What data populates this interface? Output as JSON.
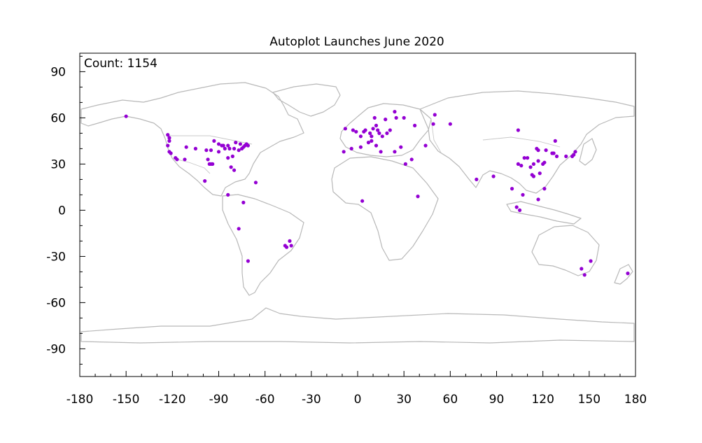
{
  "chart_data": {
    "type": "scatter",
    "title": "Autoplot Launches June 2020",
    "annotation": "Count: 1154",
    "xlabel": "",
    "ylabel": "",
    "xlim": [
      -180,
      180
    ],
    "ylim": [
      -108,
      102
    ],
    "x_ticks": [
      -180,
      -150,
      -120,
      -90,
      -60,
      -30,
      0,
      30,
      60,
      90,
      120,
      150,
      180
    ],
    "x_tick_labels": [
      "-180",
      "-150",
      "-120",
      "-90",
      "-60",
      "-30",
      "0",
      "30",
      "60",
      "90",
      "120",
      "150",
      "180"
    ],
    "y_ticks": [
      90,
      60,
      30,
      0,
      -30,
      -60,
      -90
    ],
    "y_tick_labels": [
      "90",
      "60",
      "30",
      "0",
      "-30",
      "-60",
      "-90"
    ],
    "marker_color": "#9400d3",
    "map_color": "#b8b8b8",
    "points": [
      {
        "x": -150,
        "y": 61
      },
      {
        "x": -123,
        "y": 49
      },
      {
        "x": -122,
        "y": 47
      },
      {
        "x": -122,
        "y": 45
      },
      {
        "x": -123,
        "y": 42
      },
      {
        "x": -122,
        "y": 38
      },
      {
        "x": -121,
        "y": 37
      },
      {
        "x": -118,
        "y": 34
      },
      {
        "x": -117,
        "y": 33
      },
      {
        "x": -112,
        "y": 33
      },
      {
        "x": -111,
        "y": 41
      },
      {
        "x": -105,
        "y": 40
      },
      {
        "x": -97,
        "y": 33
      },
      {
        "x": -96,
        "y": 30
      },
      {
        "x": -95,
        "y": 30
      },
      {
        "x": -94,
        "y": 30
      },
      {
        "x": -93,
        "y": 45
      },
      {
        "x": -90,
        "y": 43
      },
      {
        "x": -88,
        "y": 42
      },
      {
        "x": -87,
        "y": 42
      },
      {
        "x": -86,
        "y": 40
      },
      {
        "x": -84,
        "y": 42
      },
      {
        "x": -83,
        "y": 40
      },
      {
        "x": -84,
        "y": 34
      },
      {
        "x": -81,
        "y": 35
      },
      {
        "x": -80,
        "y": 40
      },
      {
        "x": -79,
        "y": 44
      },
      {
        "x": -77,
        "y": 39
      },
      {
        "x": -75,
        "y": 40
      },
      {
        "x": -74,
        "y": 41
      },
      {
        "x": -73,
        "y": 42
      },
      {
        "x": -71,
        "y": 42
      },
      {
        "x": -72,
        "y": 43
      },
      {
        "x": -76,
        "y": 43
      },
      {
        "x": -90,
        "y": 38
      },
      {
        "x": -95,
        "y": 39
      },
      {
        "x": -98,
        "y": 39
      },
      {
        "x": -80,
        "y": 26
      },
      {
        "x": -82,
        "y": 28
      },
      {
        "x": -66,
        "y": 18
      },
      {
        "x": -99,
        "y": 19
      },
      {
        "x": -84,
        "y": 10
      },
      {
        "x": -74,
        "y": 5
      },
      {
        "x": -77,
        "y": -12
      },
      {
        "x": -71,
        "y": -33
      },
      {
        "x": -47,
        "y": -23
      },
      {
        "x": -43,
        "y": -23
      },
      {
        "x": -46,
        "y": -24
      },
      {
        "x": -44,
        "y": -20
      },
      {
        "x": -8,
        "y": 53
      },
      {
        "x": -3,
        "y": 52
      },
      {
        "x": -1,
        "y": 51
      },
      {
        "x": 2,
        "y": 48
      },
      {
        "x": 4,
        "y": 51
      },
      {
        "x": 5,
        "y": 52
      },
      {
        "x": 8,
        "y": 50
      },
      {
        "x": 9,
        "y": 48
      },
      {
        "x": 10,
        "y": 53
      },
      {
        "x": 12,
        "y": 55
      },
      {
        "x": 13,
        "y": 52
      },
      {
        "x": 14,
        "y": 50
      },
      {
        "x": 16,
        "y": 48
      },
      {
        "x": 19,
        "y": 50
      },
      {
        "x": 21,
        "y": 52
      },
      {
        "x": 18,
        "y": 59
      },
      {
        "x": 11,
        "y": 60
      },
      {
        "x": 25,
        "y": 60
      },
      {
        "x": 24,
        "y": 64
      },
      {
        "x": 30,
        "y": 60
      },
      {
        "x": 37,
        "y": 55
      },
      {
        "x": 50,
        "y": 62
      },
      {
        "x": 49,
        "y": 56
      },
      {
        "x": 60,
        "y": 56
      },
      {
        "x": 44,
        "y": 42
      },
      {
        "x": 31,
        "y": 30
      },
      {
        "x": 35,
        "y": 33
      },
      {
        "x": 28,
        "y": 41
      },
      {
        "x": 24,
        "y": 38
      },
      {
        "x": 12,
        "y": 42
      },
      {
        "x": 9,
        "y": 45
      },
      {
        "x": 15,
        "y": 38
      },
      {
        "x": -4,
        "y": 40
      },
      {
        "x": -9,
        "y": 38
      },
      {
        "x": 2,
        "y": 41
      },
      {
        "x": 7,
        "y": 44
      },
      {
        "x": 3,
        "y": 6
      },
      {
        "x": 39,
        "y": 9
      },
      {
        "x": 77,
        "y": 20
      },
      {
        "x": 88,
        "y": 22
      },
      {
        "x": 104,
        "y": 52
      },
      {
        "x": 100,
        "y": 14
      },
      {
        "x": 103,
        "y": 2
      },
      {
        "x": 105,
        "y": 0
      },
      {
        "x": 107,
        "y": 10
      },
      {
        "x": 113,
        "y": 23
      },
      {
        "x": 114,
        "y": 22
      },
      {
        "x": 116,
        "y": 40
      },
      {
        "x": 117,
        "y": 39
      },
      {
        "x": 121,
        "y": 31
      },
      {
        "x": 120,
        "y": 30
      },
      {
        "x": 118,
        "y": 24
      },
      {
        "x": 112,
        "y": 28
      },
      {
        "x": 108,
        "y": 34
      },
      {
        "x": 104,
        "y": 30
      },
      {
        "x": 106,
        "y": 29
      },
      {
        "x": 114,
        "y": 30
      },
      {
        "x": 126,
        "y": 37
      },
      {
        "x": 127,
        "y": 37
      },
      {
        "x": 129,
        "y": 35
      },
      {
        "x": 135,
        "y": 35
      },
      {
        "x": 139,
        "y": 35
      },
      {
        "x": 140,
        "y": 36
      },
      {
        "x": 141,
        "y": 38
      },
      {
        "x": 128,
        "y": 45
      },
      {
        "x": 121,
        "y": 14
      },
      {
        "x": 117,
        "y": 7
      },
      {
        "x": 151,
        "y": -33
      },
      {
        "x": 145,
        "y": -38
      },
      {
        "x": 147,
        "y": -42
      },
      {
        "x": 175,
        "y": -41
      },
      {
        "x": 122,
        "y": 39
      },
      {
        "x": 117,
        "y": 32
      },
      {
        "x": 110,
        "y": 34
      }
    ]
  }
}
